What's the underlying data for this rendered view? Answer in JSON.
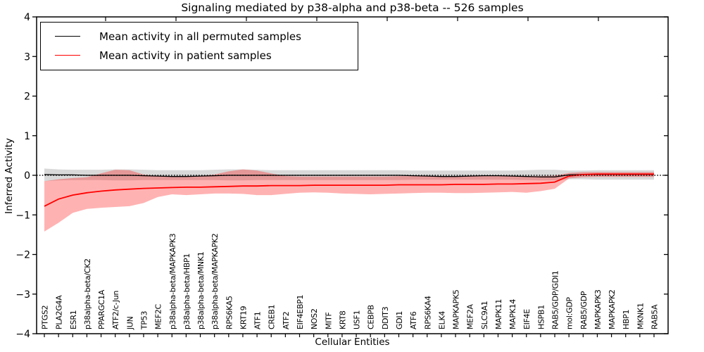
{
  "chart_data": {
    "type": "line",
    "title": "Signaling mediated by p38-alpha and p38-beta -- 526 samples",
    "xlabel": "Cellular Entities",
    "ylabel": "Inferred Activity",
    "ylim": [
      -4,
      4
    ],
    "yticks": [
      4,
      3,
      2,
      1,
      0,
      -1,
      -2,
      -3,
      -4
    ],
    "grid": false,
    "legend_position": "upper left",
    "zero_line": {
      "style": "dotted",
      "color": "#000000",
      "y": 0
    },
    "categories": [
      "PTGS2",
      "PLA2G4A",
      "ESR1",
      "p38alpha-beta/CK2",
      "PPARGC1A",
      "ATF2/c-Jun",
      "JUN",
      "TP53",
      "MEF2C",
      "p38alpha-beta/MAPKAPK3",
      "p38alpha-beta/HBP1",
      "p38alpha-beta/MNK1",
      "p38alpha-beta/MAPKAPK2",
      "RPS6KA5",
      "KRT19",
      "ATF1",
      "CREB1",
      "ATF2",
      "EIF4EBP1",
      "NOS2",
      "MITF",
      "KRT8",
      "USF1",
      "CEBPB",
      "DDIT3",
      "GDI1",
      "ATF6",
      "RPS6KA4",
      "ELK4",
      "MAPKAPK5",
      "MEF2A",
      "SLC9A1",
      "MAPK11",
      "MAPK14",
      "EIF4E",
      "HSPB1",
      "RAB5/GDP/GDI1",
      "mol:GDP",
      "RAB5/GDP",
      "MAPKAPK3",
      "MAPKAPK2",
      "HBP1",
      "MKNK1",
      "RAB5A"
    ],
    "series": [
      {
        "name": "Mean activity in all permuted samples",
        "color": "#000000",
        "band_color": "rgba(0,0,0,0.15)",
        "values": [
          0.02,
          0.01,
          0.01,
          0.0,
          0.0,
          0.0,
          0.0,
          -0.01,
          -0.02,
          -0.03,
          -0.03,
          -0.02,
          -0.01,
          0.0,
          0.0,
          0.0,
          0.0,
          0.0,
          0.0,
          0.0,
          0.0,
          0.0,
          0.0,
          0.0,
          0.0,
          0.0,
          -0.01,
          -0.02,
          -0.03,
          -0.03,
          -0.02,
          -0.01,
          -0.01,
          -0.02,
          -0.03,
          -0.04,
          -0.04,
          0.01,
          0.02,
          0.02,
          0.02,
          0.02,
          0.02,
          0.02
        ],
        "band_upper": [
          0.17,
          0.15,
          0.14,
          0.14,
          0.14,
          0.15,
          0.15,
          0.14,
          0.13,
          0.13,
          0.13,
          0.13,
          0.14,
          0.15,
          0.15,
          0.14,
          0.13,
          0.13,
          0.13,
          0.13,
          0.13,
          0.13,
          0.13,
          0.13,
          0.13,
          0.13,
          0.12,
          0.12,
          0.12,
          0.12,
          0.12,
          0.12,
          0.12,
          0.12,
          0.13,
          0.14,
          0.14,
          0.12,
          0.12,
          0.13,
          0.13,
          0.13,
          0.13,
          0.13
        ],
        "band_lower": [
          -0.15,
          -0.13,
          -0.12,
          -0.12,
          -0.12,
          -0.13,
          -0.13,
          -0.12,
          -0.12,
          -0.12,
          -0.12,
          -0.12,
          -0.12,
          -0.13,
          -0.13,
          -0.12,
          -0.12,
          -0.12,
          -0.12,
          -0.12,
          -0.12,
          -0.12,
          -0.12,
          -0.12,
          -0.12,
          -0.12,
          -0.11,
          -0.11,
          -0.11,
          -0.11,
          -0.11,
          -0.11,
          -0.11,
          -0.11,
          -0.12,
          -0.13,
          -0.13,
          -0.1,
          -0.1,
          -0.11,
          -0.11,
          -0.11,
          -0.11,
          -0.11
        ]
      },
      {
        "name": "Mean activity in patient samples",
        "color": "#ff0000",
        "band_color": "rgba(255,0,0,0.30)",
        "values": [
          -0.78,
          -0.6,
          -0.5,
          -0.44,
          -0.4,
          -0.37,
          -0.35,
          -0.33,
          -0.32,
          -0.31,
          -0.3,
          -0.3,
          -0.29,
          -0.28,
          -0.27,
          -0.27,
          -0.26,
          -0.26,
          -0.26,
          -0.25,
          -0.25,
          -0.25,
          -0.25,
          -0.25,
          -0.25,
          -0.24,
          -0.24,
          -0.24,
          -0.24,
          -0.23,
          -0.23,
          -0.23,
          -0.22,
          -0.22,
          -0.21,
          -0.2,
          -0.17,
          -0.02,
          0.02,
          0.03,
          0.03,
          0.03,
          0.03,
          0.03
        ],
        "band_upper": [
          -0.15,
          -0.1,
          -0.07,
          -0.05,
          0.05,
          0.14,
          0.13,
          0.02,
          -0.02,
          -0.03,
          -0.03,
          -0.02,
          0.02,
          0.1,
          0.15,
          0.12,
          0.05,
          -0.02,
          -0.03,
          -0.03,
          -0.03,
          -0.03,
          -0.03,
          -0.03,
          -0.03,
          -0.02,
          -0.02,
          -0.02,
          -0.02,
          -0.02,
          -0.02,
          -0.02,
          -0.02,
          -0.02,
          -0.02,
          -0.02,
          -0.01,
          0.06,
          0.08,
          0.08,
          0.08,
          0.08,
          0.08,
          0.08
        ],
        "band_lower": [
          -1.42,
          -1.2,
          -0.95,
          -0.85,
          -0.82,
          -0.8,
          -0.78,
          -0.7,
          -0.55,
          -0.48,
          -0.5,
          -0.48,
          -0.46,
          -0.46,
          -0.47,
          -0.5,
          -0.5,
          -0.47,
          -0.44,
          -0.43,
          -0.44,
          -0.46,
          -0.47,
          -0.48,
          -0.47,
          -0.46,
          -0.45,
          -0.44,
          -0.44,
          -0.45,
          -0.45,
          -0.44,
          -0.43,
          -0.42,
          -0.44,
          -0.4,
          -0.34,
          -0.08,
          -0.05,
          -0.04,
          -0.04,
          -0.04,
          -0.04,
          -0.04
        ]
      }
    ],
    "legend": [
      {
        "label": "Mean activity in all permuted samples",
        "color": "#000000"
      },
      {
        "label": "Mean activity in patient samples",
        "color": "#ff0000"
      }
    ]
  }
}
